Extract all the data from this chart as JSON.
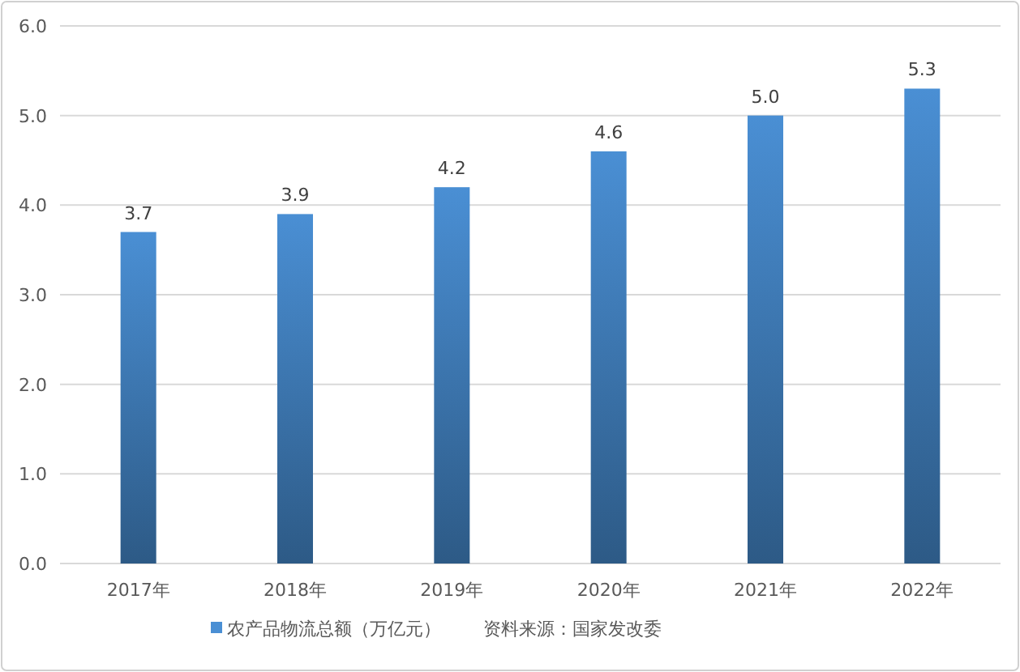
{
  "chart_data": {
    "type": "bar",
    "categories": [
      "2017年",
      "2018年",
      "2019年",
      "2020年",
      "2021年",
      "2022年"
    ],
    "series": [
      {
        "name": "农产品物流总额（万亿元）",
        "color": "#4a8fd4",
        "values": [
          3.7,
          3.9,
          4.2,
          4.6,
          5.0,
          5.3
        ]
      }
    ],
    "ylim": [
      0,
      6
    ],
    "yticks": [
      {
        "value": 0,
        "label": "0.0"
      },
      {
        "value": 1,
        "label": "1.0"
      },
      {
        "value": 2,
        "label": "2.0"
      },
      {
        "value": 3,
        "label": "3.0"
      },
      {
        "value": 4,
        "label": "4.0"
      },
      {
        "value": 5,
        "label": "5.0"
      },
      {
        "value": 6,
        "label": "6.0"
      }
    ],
    "grid": "y",
    "legend": "bottom",
    "value_labels": [
      "3.7",
      "3.9",
      "4.2",
      "4.6",
      "5.0",
      "5.3"
    ],
    "annotations": [
      "资料来源：国家发改委"
    ]
  }
}
